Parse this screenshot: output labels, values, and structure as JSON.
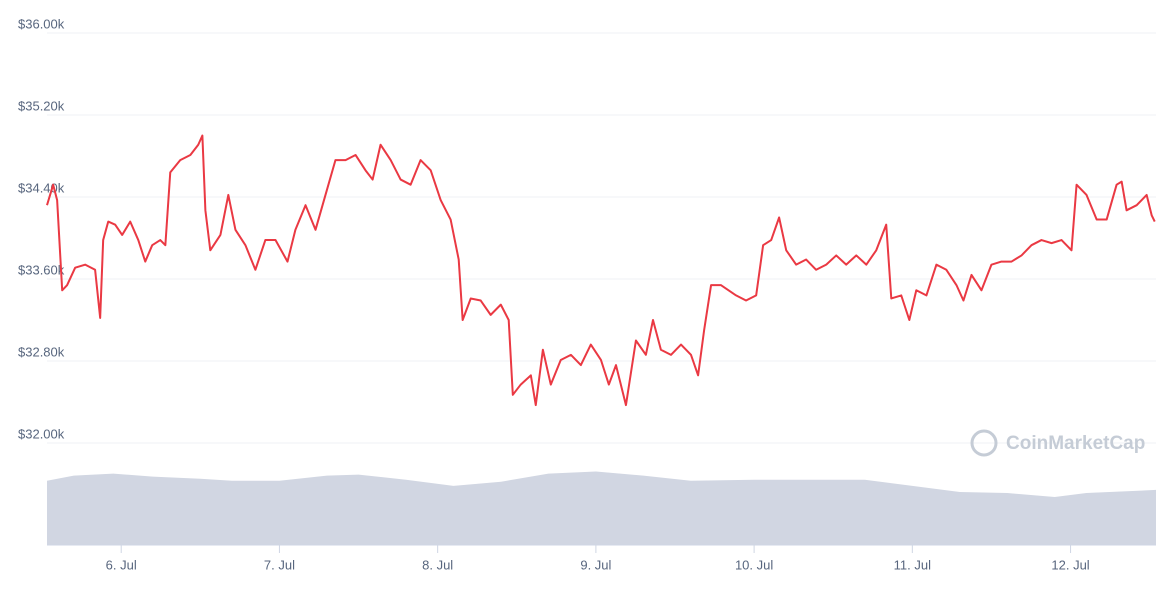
{
  "chart_data": {
    "type": "line",
    "watermark": "CoinMarketCap",
    "xlim": [
      5.531,
      12.54
    ],
    "xticks": [
      {
        "value": 6,
        "label": "6. Jul"
      },
      {
        "value": 7,
        "label": "7. Jul"
      },
      {
        "value": 8,
        "label": "8. Jul"
      },
      {
        "value": 9,
        "label": "9. Jul"
      },
      {
        "value": 10,
        "label": "10. Jul"
      },
      {
        "value": 11,
        "label": "11. Jul"
      },
      {
        "value": 12,
        "label": "12. Jul"
      }
    ],
    "ylim": [
      32000,
      36000
    ],
    "yticks": [
      {
        "value": 32000,
        "label": "$32.00k"
      },
      {
        "value": 32800,
        "label": "$32.80k"
      },
      {
        "value": 33600,
        "label": "$33.60k"
      },
      {
        "value": 34400,
        "label": "$34.40k"
      },
      {
        "value": 35200,
        "label": "$35.20k"
      },
      {
        "value": 36000,
        "label": "$36.00k"
      }
    ],
    "y2lim": [
      0,
      100
    ],
    "grid": true,
    "series": [
      {
        "color": "#ea3943",
        "x": [
          5.531,
          5.57,
          5.595,
          5.627,
          5.658,
          5.709,
          5.772,
          5.835,
          5.867,
          5.886,
          5.918,
          5.962,
          6.006,
          6.057,
          6.108,
          6.152,
          6.196,
          6.247,
          6.279,
          6.31,
          6.373,
          6.437,
          6.487,
          6.513,
          6.532,
          6.563,
          6.627,
          6.677,
          6.722,
          6.785,
          6.848,
          6.911,
          6.975,
          7.051,
          7.101,
          7.165,
          7.228,
          7.291,
          7.354,
          7.418,
          7.481,
          7.544,
          7.589,
          7.639,
          7.703,
          7.766,
          7.829,
          7.892,
          7.956,
          8.019,
          8.082,
          8.133,
          8.158,
          8.209,
          8.272,
          8.335,
          8.399,
          8.449,
          8.475,
          8.525,
          8.589,
          8.62,
          8.665,
          8.715,
          8.778,
          8.842,
          8.905,
          8.968,
          9.032,
          9.082,
          9.127,
          9.19,
          9.253,
          9.316,
          9.361,
          9.411,
          9.475,
          9.538,
          9.601,
          9.646,
          9.684,
          9.728,
          9.791,
          9.886,
          9.949,
          10.013,
          10.057,
          10.108,
          10.158,
          10.203,
          10.266,
          10.329,
          10.392,
          10.456,
          10.519,
          10.582,
          10.646,
          10.709,
          10.772,
          10.835,
          10.867,
          10.93,
          10.981,
          11.025,
          11.089,
          11.152,
          11.215,
          11.279,
          11.323,
          11.374,
          11.437,
          11.5,
          11.563,
          11.627,
          11.69,
          11.753,
          11.816,
          11.88,
          11.943,
          12.006,
          12.038,
          12.101,
          12.165,
          12.228,
          12.291,
          12.323,
          12.354,
          12.418,
          12.481,
          12.513,
          12.532
        ],
        "values": [
          34320,
          34520,
          34370,
          33490,
          33540,
          33710,
          33740,
          33690,
          33220,
          33980,
          34160,
          34130,
          34030,
          34160,
          33980,
          33770,
          33930,
          33980,
          33930,
          34640,
          34760,
          34810,
          34910,
          35000,
          34270,
          33880,
          34030,
          34420,
          34080,
          33930,
          33690,
          33980,
          33980,
          33770,
          34080,
          34320,
          34080,
          34420,
          34760,
          34760,
          34810,
          34660,
          34570,
          34910,
          34760,
          34570,
          34520,
          34760,
          34660,
          34370,
          34180,
          33790,
          33200,
          33410,
          33390,
          33250,
          33350,
          33200,
          32470,
          32570,
          32660,
          32370,
          32910,
          32570,
          32810,
          32860,
          32760,
          32960,
          32810,
          32570,
          32760,
          32370,
          33000,
          32860,
          33200,
          32910,
          32860,
          32960,
          32860,
          32660,
          33100,
          33540,
          33540,
          33440,
          33390,
          33440,
          33930,
          33980,
          34200,
          33880,
          33740,
          33790,
          33690,
          33740,
          33830,
          33740,
          33830,
          33740,
          33880,
          34130,
          33410,
          33440,
          33200,
          33490,
          33440,
          33740,
          33690,
          33540,
          33390,
          33640,
          33490,
          33740,
          33770,
          33770,
          33830,
          33930,
          33980,
          33950,
          33980,
          33880,
          34520,
          34420,
          34180,
          34180,
          34520,
          34550,
          34270,
          34320,
          34420,
          34220,
          34160
        ]
      },
      {
        "color": "#d1d6e2",
        "axis": "y2",
        "x": [
          5.531,
          5.7,
          5.95,
          6.2,
          6.5,
          6.7,
          7.0,
          7.3,
          7.5,
          7.8,
          8.1,
          8.4,
          8.7,
          9.0,
          9.3,
          9.6,
          10.0,
          10.4,
          10.7,
          11.0,
          11.3,
          11.6,
          11.9,
          12.1,
          12.54
        ],
        "values": [
          63,
          68,
          70,
          67,
          65,
          63,
          63,
          68,
          69,
          64,
          58,
          62,
          70,
          72,
          68,
          63,
          64,
          64,
          64,
          58,
          52,
          51,
          47,
          51,
          54
        ]
      }
    ]
  }
}
